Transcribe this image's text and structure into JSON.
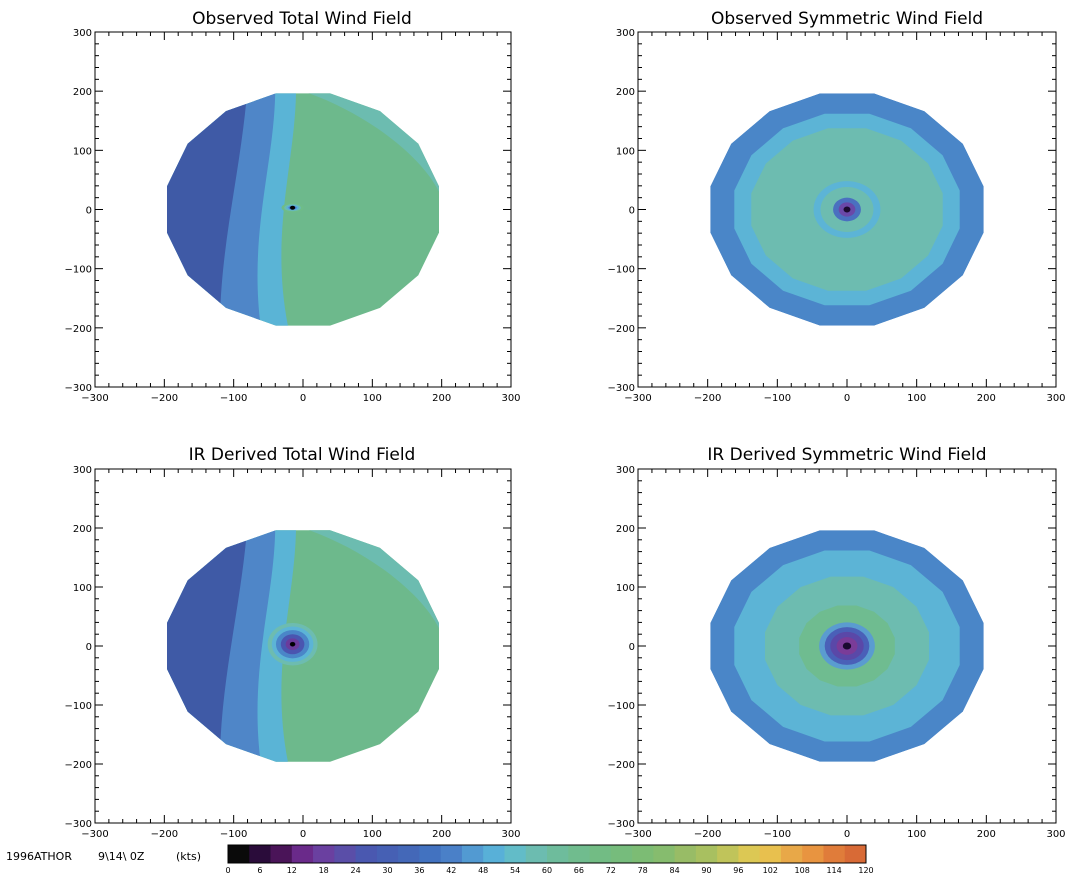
{
  "chart_data": [
    {
      "type": "heatmap",
      "title": "Observed Total Wind Field",
      "x_ticks": [
        "−300",
        "−200",
        "−100",
        "0",
        "100",
        "200",
        "300"
      ],
      "y_ticks": [
        "300",
        "200",
        "100",
        "0",
        "−100",
        "−200",
        "−300"
      ],
      "xlim": [
        -300,
        300
      ],
      "ylim": [
        -300,
        300
      ],
      "field_radius": 200,
      "field": "asymmetric",
      "ring_colors": [
        "#7a5ab0",
        "#3a4fa0",
        "#4a78c8",
        "#5ab0d8",
        "#6cbcb0",
        "#6fbc88"
      ],
      "west_color": "#3f5aa6",
      "mid_color": "#4f86c8",
      "east_color": "#6db98c"
    },
    {
      "type": "heatmap",
      "title": "Observed Symmetric Wind Field",
      "x_ticks": [
        "−300",
        "−200",
        "−100",
        "0",
        "100",
        "200",
        "300"
      ],
      "y_ticks": [
        "300",
        "200",
        "100",
        "0",
        "−100",
        "−200",
        "−300"
      ],
      "xlim": [
        -300,
        300
      ],
      "ylim": [
        -300,
        300
      ],
      "field_radius": 200,
      "field": "symmetric",
      "rings": [
        {
          "r": 200,
          "color": "#4a86c8"
        },
        {
          "r": 165,
          "color": "#5cb4d6"
        },
        {
          "r": 140,
          "color": "#6dbcb0"
        },
        {
          "r": 48,
          "color": "#5cb4d6"
        },
        {
          "r": 38,
          "color": "#6dbcb0"
        },
        {
          "r": 20,
          "color": "#4a70c0"
        },
        {
          "r": 12,
          "color": "#6a48a8"
        },
        {
          "r": 5,
          "color": "#1a0a30"
        }
      ]
    },
    {
      "type": "heatmap",
      "title": "IR Derived Total Wind Field",
      "x_ticks": [
        "−300",
        "−200",
        "−100",
        "0",
        "100",
        "200",
        "300"
      ],
      "y_ticks": [
        "300",
        "200",
        "100",
        "0",
        "−100",
        "−200",
        "−300"
      ],
      "xlim": [
        -300,
        300
      ],
      "ylim": [
        -300,
        300
      ],
      "field_radius": 200,
      "field": "asymmetric",
      "ring_colors": [
        "#1a0a30",
        "#6a3c9c",
        "#4a55b0",
        "#4a86c8",
        "#5cb4d6",
        "#6dbcb0"
      ],
      "west_color": "#3f5aa6",
      "mid_color": "#4f86c8",
      "east_color": "#6db98c"
    },
    {
      "type": "heatmap",
      "title": "IR Derived Symmetric Wind Field",
      "x_ticks": [
        "−300",
        "−200",
        "−100",
        "0",
        "100",
        "200",
        "300"
      ],
      "y_ticks": [
        "300",
        "200",
        "100",
        "0",
        "−100",
        "−200",
        "−300"
      ],
      "xlim": [
        -300,
        300
      ],
      "ylim": [
        -300,
        300
      ],
      "field_radius": 200,
      "field": "symmetric",
      "rings": [
        {
          "r": 200,
          "color": "#4a86c8"
        },
        {
          "r": 165,
          "color": "#5cb4d6"
        },
        {
          "r": 120,
          "color": "#6dbcb0"
        },
        {
          "r": 70,
          "color": "#6fbc90"
        },
        {
          "r": 40,
          "color": "#5a9cd0"
        },
        {
          "r": 32,
          "color": "#4a60b8"
        },
        {
          "r": 24,
          "color": "#5a48a8"
        },
        {
          "r": 15,
          "color": "#7a3c98"
        },
        {
          "r": 6,
          "color": "#1a0a30"
        }
      ]
    }
  ],
  "caption": {
    "storm_id": "1996ATHOR",
    "datetime": "9\\14\\ 0Z",
    "units": "(kts)"
  },
  "colorbar": {
    "ticks": [
      "0",
      "6",
      "12",
      "18",
      "24",
      "30",
      "36",
      "42",
      "48",
      "54",
      "60",
      "66",
      "72",
      "78",
      "84",
      "90",
      "96",
      "102",
      "108",
      "114",
      "120"
    ],
    "colors": [
      "#0a0a0a",
      "#2a0c3a",
      "#4a1458",
      "#6a2a8a",
      "#6a40a0",
      "#5a4ea8",
      "#4a58b0",
      "#4660b4",
      "#4468b8",
      "#4272c0",
      "#4a80c8",
      "#529ad2",
      "#58b0d8",
      "#62bcc8",
      "#6cbcb0",
      "#6ebc9c",
      "#70bc8e",
      "#72bc84",
      "#76bc7c",
      "#7cbc74",
      "#86bc6e",
      "#98bc66",
      "#a8c060",
      "#c0c45a",
      "#dcc854",
      "#e8c04e",
      "#e8a848",
      "#e89440",
      "#e07c3a",
      "#d86a36"
    ]
  }
}
